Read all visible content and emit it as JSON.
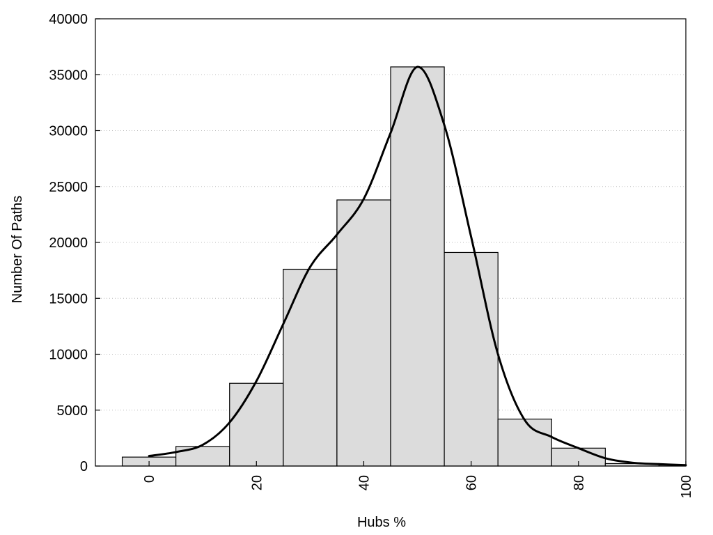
{
  "chart_data": {
    "type": "bar",
    "title": "",
    "xlabel": "Hubs %",
    "ylabel": "Number Of Paths",
    "xlim": [
      -10,
      100
    ],
    "ylim": [
      0,
      40000
    ],
    "xticks": [
      0,
      20,
      40,
      60,
      80,
      100
    ],
    "yticks": [
      0,
      5000,
      10000,
      15000,
      20000,
      25000,
      30000,
      35000,
      40000
    ],
    "grid": "horizontal dotted",
    "legend": "none",
    "bar_width": 10,
    "bars": [
      {
        "x": 0,
        "value": 800
      },
      {
        "x": 10,
        "value": 1750
      },
      {
        "x": 20,
        "value": 7400
      },
      {
        "x": 30,
        "value": 17600
      },
      {
        "x": 40,
        "value": 23800
      },
      {
        "x": 50,
        "value": 35700
      },
      {
        "x": 60,
        "value": 19100
      },
      {
        "x": 70,
        "value": 4200
      },
      {
        "x": 80,
        "value": 1600
      },
      {
        "x": 90,
        "value": 220
      },
      {
        "x": 100,
        "value": 90
      }
    ],
    "curve": [
      [
        0,
        900
      ],
      [
        5,
        1250
      ],
      [
        10,
        1900
      ],
      [
        15,
        3900
      ],
      [
        20,
        7600
      ],
      [
        25,
        12700
      ],
      [
        30,
        17800
      ],
      [
        35,
        20700
      ],
      [
        40,
        23900
      ],
      [
        45,
        29800
      ],
      [
        50,
        35700
      ],
      [
        55,
        30500
      ],
      [
        60,
        20500
      ],
      [
        65,
        10000
      ],
      [
        70,
        4100
      ],
      [
        75,
        2600
      ],
      [
        80,
        1600
      ],
      [
        85,
        700
      ],
      [
        90,
        300
      ],
      [
        95,
        170
      ],
      [
        100,
        80
      ]
    ],
    "colors": {
      "bar_fill": "#dcdcdc",
      "bar_stroke": "#000000",
      "curve": "#000000",
      "grid": "#bbbbbb"
    }
  }
}
